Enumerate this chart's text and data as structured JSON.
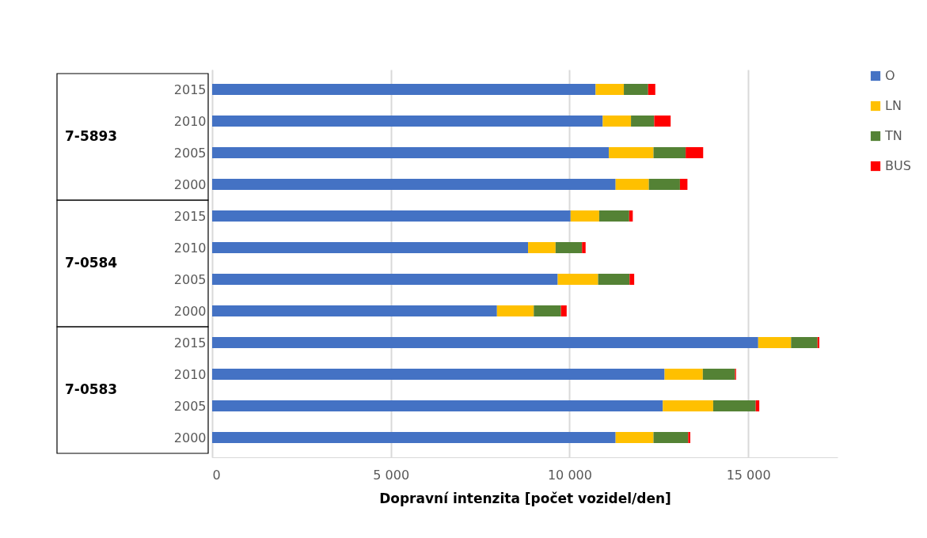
{
  "chart_data": {
    "type": "bar",
    "orientation": "horizontal",
    "stacked": true,
    "categories": [
      "2015",
      "2010",
      "2005",
      "2000",
      "2015",
      "2010",
      "2005",
      "2000",
      "2015",
      "2010",
      "2005",
      "2000"
    ],
    "series": [
      {
        "name": "O",
        "color": "#4472c4",
        "values": [
          10730,
          10930,
          11100,
          11290,
          10030,
          8840,
          9670,
          7970,
          15280,
          12660,
          12610,
          11290
        ]
      },
      {
        "name": "LN",
        "color": "#ffc000",
        "values": [
          790,
          790,
          1250,
          930,
          800,
          770,
          1130,
          1030,
          920,
          1070,
          1410,
          1060
        ]
      },
      {
        "name": "TN",
        "color": "#548235",
        "values": [
          680,
          650,
          900,
          870,
          840,
          740,
          880,
          760,
          740,
          900,
          1190,
          970
        ]
      },
      {
        "name": "BUS",
        "color": "#ff0000",
        "values": [
          200,
          460,
          490,
          210,
          100,
          100,
          130,
          160,
          50,
          30,
          100,
          60
        ]
      }
    ],
    "xlabel": "Dopravní intenzita [počet vozidel/den]",
    "xlim": [
      0,
      17500
    ],
    "xticks": [
      0,
      {
        "value": 5000,
        "label": "5 000"
      },
      {
        "value": 10000,
        "label": "10 000"
      },
      {
        "value": 15000,
        "label": "15 000"
      }
    ],
    "grid": "x",
    "legend": "right",
    "annotations": [
      "7-5893",
      "7-0584",
      "7-0583"
    ]
  }
}
